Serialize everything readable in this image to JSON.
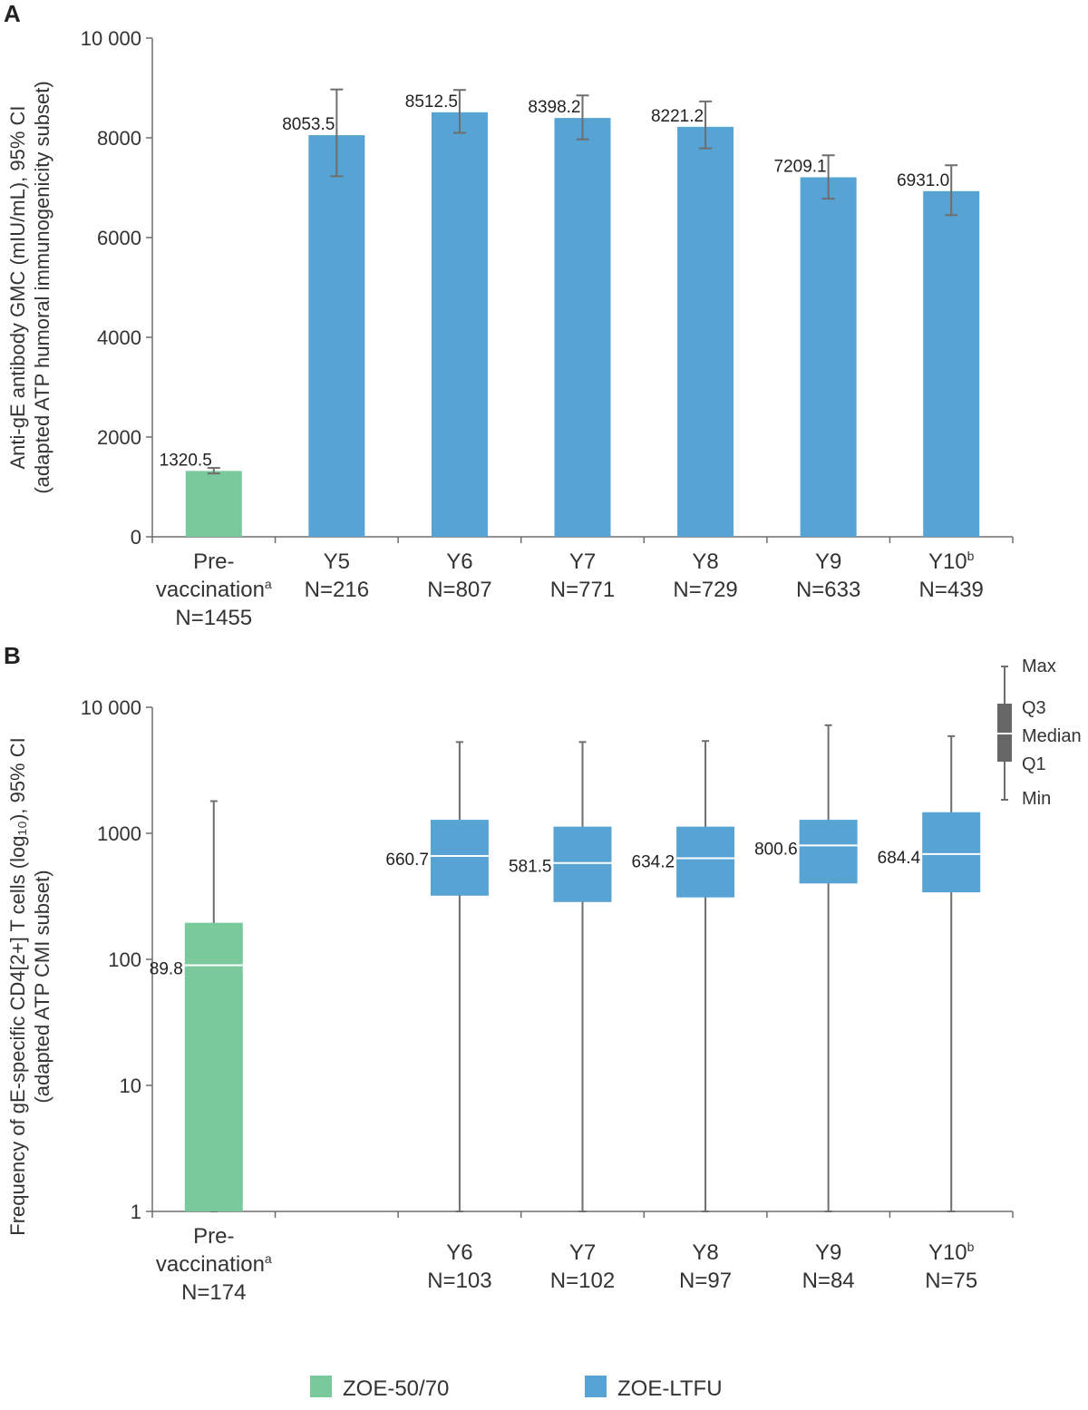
{
  "colors": {
    "zoe5070": "#7ac99c",
    "zoeltfu": "#56a3d4",
    "axis": "#6e6e6e",
    "whisker": "#6e6e6e",
    "median_line": "#ffffff",
    "key_box": "#666666"
  },
  "panels": {
    "a": {
      "letter": "A"
    },
    "b": {
      "letter": "B"
    }
  },
  "legend": {
    "zoe5070": "ZOE-50/70",
    "zoeltfu": "ZOE-LTFU"
  },
  "chart_data": [
    {
      "type": "bar",
      "panel": "A",
      "ylabel_lines": [
        "Anti-gE antibody GMC (mIU/mL), 95% CI",
        "(adapted ATP humoral immunogenicity subset)"
      ],
      "ylim": [
        0,
        10000
      ],
      "yticks": [
        0,
        2000,
        4000,
        6000,
        8000,
        10000
      ],
      "ytick_labels": [
        "0",
        "2000",
        "4000",
        "6000",
        "8000",
        "10 000"
      ],
      "categories": [
        {
          "lines": [
            "Pre-",
            "vaccination",
            "N=1455"
          ],
          "sup": "a",
          "sup_line": 1,
          "group": "zoe5070"
        },
        {
          "lines": [
            "Y5",
            "N=216"
          ],
          "group": "zoeltfu"
        },
        {
          "lines": [
            "Y6",
            "N=807"
          ],
          "group": "zoeltfu"
        },
        {
          "lines": [
            "Y7",
            "N=771"
          ],
          "group": "zoeltfu"
        },
        {
          "lines": [
            "Y8",
            "N=729"
          ],
          "group": "zoeltfu"
        },
        {
          "lines": [
            "Y9",
            "N=633"
          ],
          "group": "zoeltfu"
        },
        {
          "lines": [
            "Y10",
            "N=439"
          ],
          "sup": "b",
          "sup_line": 0,
          "group": "zoeltfu"
        }
      ],
      "values": [
        1320.5,
        8053.5,
        8512.5,
        8398.2,
        8221.2,
        7209.1,
        6931.0
      ],
      "value_labels": [
        "1320.5",
        "8053.5",
        "8512.5",
        "8398.2",
        "8221.2",
        "7209.1",
        "6931.0"
      ],
      "ci_low": [
        1270,
        7230,
        8100,
        7970,
        7790,
        6780,
        6450
      ],
      "ci_high": [
        1380,
        8970,
        8960,
        8850,
        8730,
        7650,
        7450
      ]
    },
    {
      "type": "box",
      "panel": "B",
      "yscale": "log",
      "ylabel_lines": [
        "Frequency of gE-specific CD4[2+] T cells (log₁₀), 95% CI",
        "(adapted ATP CMI subset)"
      ],
      "ylim": [
        1,
        10000
      ],
      "yticks": [
        1,
        10,
        100,
        1000,
        10000
      ],
      "ytick_labels": [
        "1",
        "10",
        "100",
        "1000",
        "10 000"
      ],
      "categories": [
        {
          "lines": [
            "Pre-",
            "vaccination",
            "N=174"
          ],
          "sup": "a",
          "sup_line": 1,
          "group": "zoe5070",
          "slot": 0
        },
        {
          "lines": [
            "Y6",
            "N=103"
          ],
          "group": "zoeltfu",
          "slot": 2
        },
        {
          "lines": [
            "Y7",
            "N=102"
          ],
          "group": "zoeltfu",
          "slot": 3
        },
        {
          "lines": [
            "Y8",
            "N=97"
          ],
          "group": "zoeltfu",
          "slot": 4
        },
        {
          "lines": [
            "Y9",
            "N=84"
          ],
          "group": "zoeltfu",
          "slot": 5
        },
        {
          "lines": [
            "Y10",
            "N=75"
          ],
          "sup": "b",
          "sup_line": 0,
          "group": "zoeltfu",
          "slot": 6
        }
      ],
      "min": [
        1,
        1,
        1,
        1,
        1,
        1
      ],
      "q1": [
        1,
        320,
        285,
        310,
        400,
        340
      ],
      "median": [
        89.8,
        660.7,
        581.5,
        634.2,
        800.6,
        684.4
      ],
      "q3": [
        195,
        1280,
        1130,
        1130,
        1280,
        1470
      ],
      "max": [
        1800,
        5300,
        5300,
        5400,
        7200,
        5900
      ],
      "median_labels": [
        "89.8",
        "660.7",
        "581.5",
        "634.2",
        "800.6",
        "684.4"
      ],
      "key_labels": {
        "max": "Max",
        "q3": "Q3",
        "median": "Median",
        "q1": "Q1",
        "min": "Min"
      }
    }
  ]
}
